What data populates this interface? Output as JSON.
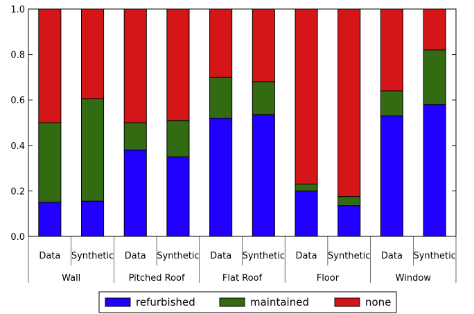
{
  "chart_data": {
    "type": "bar",
    "stacked": true,
    "groups": [
      "Wall",
      "Pitched Roof",
      "Flat Roof",
      "Floor",
      "Window"
    ],
    "subcategories": [
      "Data",
      "Synthetic"
    ],
    "ylim": [
      0,
      1.0
    ],
    "yticks": [
      "0.0",
      "0.2",
      "0.4",
      "0.6",
      "0.8",
      "1.0"
    ],
    "legend_position": "bottom-center",
    "grid": false,
    "series": [
      {
        "name": "refurbished",
        "color": "#2200ff",
        "values": [
          0.15,
          0.155,
          0.38,
          0.35,
          0.52,
          0.535,
          0.2,
          0.135,
          0.53,
          0.58
        ]
      },
      {
        "name": "maintained",
        "color": "#336b12",
        "values": [
          0.35,
          0.45,
          0.12,
          0.16,
          0.18,
          0.145,
          0.03,
          0.04,
          0.11,
          0.24
        ]
      },
      {
        "name": "none",
        "color": "#d41619",
        "values": [
          0.5,
          0.395,
          0.5,
          0.49,
          0.3,
          0.32,
          0.77,
          0.825,
          0.36,
          0.18
        ]
      }
    ]
  }
}
